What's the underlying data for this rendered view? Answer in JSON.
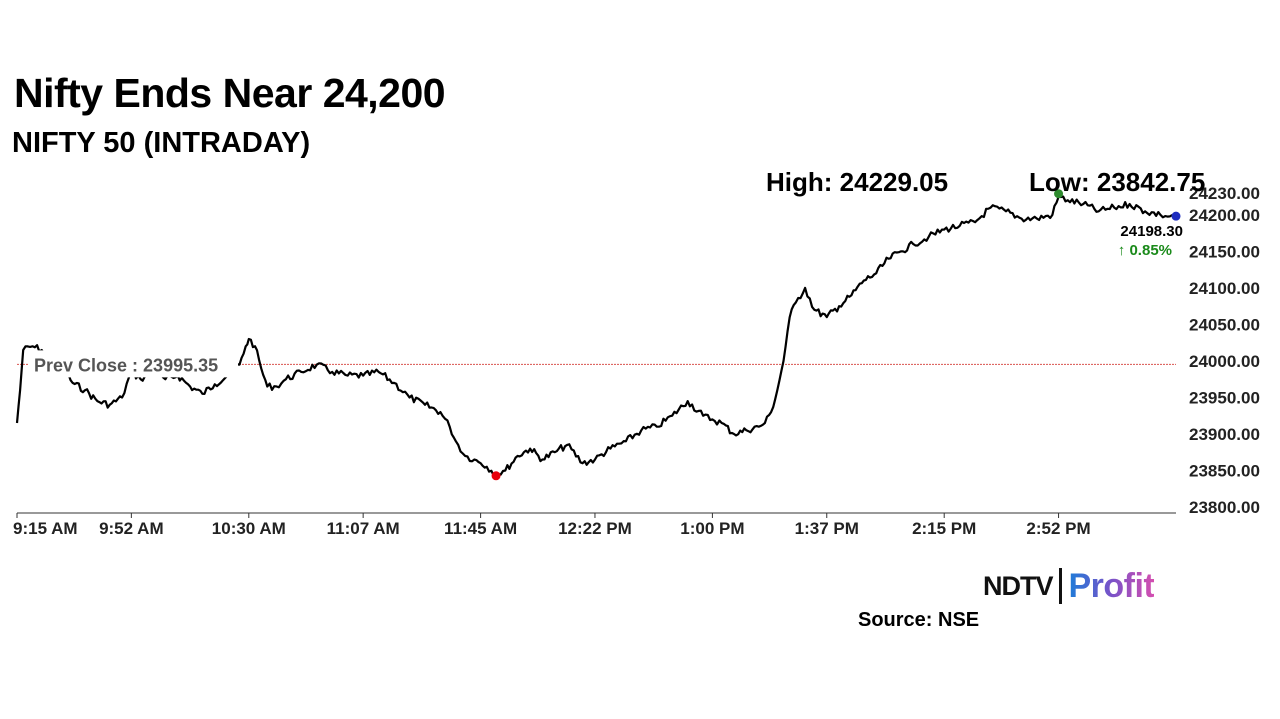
{
  "chart_data": {
    "type": "line",
    "title": "Nifty Ends Near 24,200",
    "subtitle": "NIFTY 50 (INTRADAY)",
    "high_text": "High: 24229.05",
    "low_text": "Low: 23842.75",
    "prev_close_text": "Prev Close : 23995.35",
    "last_value_text": "24198.30",
    "change_text": "↑ 0.85%",
    "prev_close": 23995.35,
    "high": 24229.05,
    "low": 23842.75,
    "last": 24198.3,
    "ylim": [
      23800,
      24230
    ],
    "y_ticks": [
      "23800.00",
      "23850.00",
      "23900.00",
      "23950.00",
      "24000.00",
      "24050.00",
      "24100.00",
      "24150.00",
      "24200.00",
      "24230.00"
    ],
    "x_ticks": [
      "9:15 AM",
      "9:52 AM",
      "10:30 AM",
      "11:07 AM",
      "11:45 AM",
      "12:22 PM",
      "1:00 PM",
      "1:37 PM",
      "2:15 PM",
      "2:52 PM"
    ],
    "x_tick_minutes": [
      0,
      37,
      75,
      112,
      150,
      187,
      225,
      262,
      300,
      337
    ],
    "x_range_minutes": [
      0,
      375
    ],
    "series": [
      {
        "x": [
          0,
          1,
          2,
          5,
          8,
          11,
          14,
          18,
          22,
          26,
          30,
          34,
          37,
          40,
          44,
          48,
          52,
          56,
          60,
          64,
          68,
          72,
          74,
          75,
          77,
          79,
          81,
          84,
          87,
          92,
          97,
          102,
          107,
          112,
          117,
          122,
          127,
          132,
          137,
          140,
          142,
          145,
          148,
          150,
          152,
          155,
          158,
          162,
          166,
          170,
          174,
          178,
          183,
          187,
          192,
          197,
          202,
          207,
          212,
          217,
          222,
          225,
          228,
          232,
          236,
          240,
          242,
          244,
          246,
          248,
          250,
          252,
          255,
          258,
          262,
          266,
          270,
          274,
          278,
          282,
          286,
          290,
          295,
          300,
          305,
          310,
          315,
          320,
          325,
          330,
          335,
          337,
          340,
          345,
          350,
          355,
          360,
          365,
          370,
          373,
          375
        ],
        "y": [
          23915,
          23960,
          24015,
          24020,
          24015,
          24000,
          23995,
          23970,
          23960,
          23945,
          23940,
          23950,
          23985,
          23975,
          23985,
          23975,
          23980,
          23965,
          23955,
          23968,
          23980,
          23995,
          24020,
          24030,
          24020,
          23990,
          23965,
          23965,
          23975,
          23985,
          23995,
          23985,
          23980,
          23980,
          23985,
          23970,
          23950,
          23940,
          23930,
          23910,
          23890,
          23870,
          23865,
          23860,
          23855,
          23845,
          23850,
          23870,
          23880,
          23865,
          23875,
          23885,
          23860,
          23865,
          23880,
          23890,
          23905,
          23910,
          23925,
          23945,
          23925,
          23920,
          23915,
          23900,
          23905,
          23910,
          23915,
          23930,
          23960,
          24000,
          24060,
          24080,
          24100,
          24070,
          24060,
          24075,
          24090,
          24110,
          24120,
          24140,
          24150,
          24160,
          24170,
          24180,
          24185,
          24190,
          24210,
          24205,
          24195,
          24195,
          24200,
          24225,
          24220,
          24215,
          24205,
          24210,
          24215,
          24205,
          24200,
          24198,
          24198.3
        ]
      }
    ],
    "colors": {
      "line": "#000000",
      "prev_close_line": "#d9534f",
      "high_dot": "#2e8b2e",
      "low_dot": "#e8000b",
      "last_dot": "#1f2dbf",
      "change_text": "#1a8a1a",
      "axis": "#333333"
    }
  },
  "footer": {
    "brand_left": "NDTV",
    "brand_right": "Profit",
    "source": "Source: NSE"
  }
}
